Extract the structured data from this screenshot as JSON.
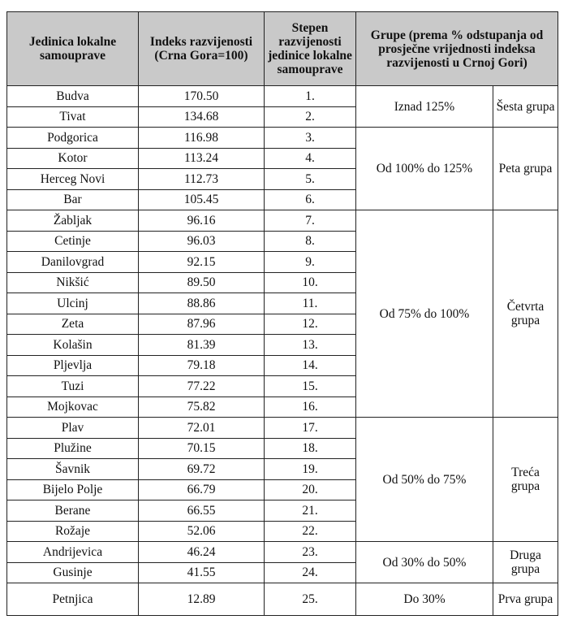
{
  "headers": {
    "unit": "Jedinica lokalne samouprave",
    "index": "Indeks razvijenosti (Crna Gora=100)",
    "rank": "Stepen razvijenosti jedinice lokalne samouprave",
    "groups": "Grupe (prema % odstupanja od prosječne vrijednosti indeksa razvijenosti u Crnoj Gori)"
  },
  "rows": [
    {
      "unit": "Budva",
      "index": "170.50",
      "rank": "1."
    },
    {
      "unit": "Tivat",
      "index": "134.68",
      "rank": "2."
    },
    {
      "unit": "Podgorica",
      "index": "116.98",
      "rank": "3."
    },
    {
      "unit": "Kotor",
      "index": "113.24",
      "rank": "4."
    },
    {
      "unit": "Herceg Novi",
      "index": "112.73",
      "rank": "5."
    },
    {
      "unit": "Bar",
      "index": "105.45",
      "rank": "6."
    },
    {
      "unit": "Žabljak",
      "index": "96.16",
      "rank": "7."
    },
    {
      "unit": "Cetinje",
      "index": "96.03",
      "rank": "8."
    },
    {
      "unit": "Danilovgrad",
      "index": "92.15",
      "rank": "9."
    },
    {
      "unit": "Nikšić",
      "index": "89.50",
      "rank": "10."
    },
    {
      "unit": "Ulcinj",
      "index": "88.86",
      "rank": "11."
    },
    {
      "unit": "Zeta",
      "index": "87.96",
      "rank": "12."
    },
    {
      "unit": "Kolašin",
      "index": "81.39",
      "rank": "13."
    },
    {
      "unit": "Pljevlja",
      "index": "79.18",
      "rank": "14."
    },
    {
      "unit": "Tuzi",
      "index": "77.22",
      "rank": "15."
    },
    {
      "unit": "Mojkovac",
      "index": "75.82",
      "rank": "16."
    },
    {
      "unit": "Plav",
      "index": "72.01",
      "rank": "17."
    },
    {
      "unit": "Plužine",
      "index": "70.15",
      "rank": "18."
    },
    {
      "unit": "Šavnik",
      "index": "69.72",
      "rank": "19."
    },
    {
      "unit": "Bijelo Polje",
      "index": "66.79",
      "rank": "20."
    },
    {
      "unit": "Berane",
      "index": "66.55",
      "rank": "21."
    },
    {
      "unit": "Rožaje",
      "index": "52.06",
      "rank": "22."
    },
    {
      "unit": "Andrijevica",
      "index": "46.24",
      "rank": "23."
    },
    {
      "unit": "Gusinje",
      "index": "41.55",
      "rank": "24."
    },
    {
      "unit": "Petnjica",
      "index": "12.89",
      "rank": "25."
    }
  ],
  "groups": [
    {
      "range": "Iznad 125%",
      "name": "Šesta grupa",
      "span": 2
    },
    {
      "range": "Od 100% do 125%",
      "name": "Peta grupa",
      "span": 4
    },
    {
      "range": "Od 75% do 100%",
      "name": "Četvrta grupa",
      "span": 10
    },
    {
      "range": "Od 50% do 75%",
      "name": "Treća grupa",
      "span": 6
    },
    {
      "range": "Od 30% do 50%",
      "name": "Druga grupa",
      "span": 2
    },
    {
      "range": "Do 30%",
      "name": "Prva grupa",
      "span": 1
    }
  ]
}
